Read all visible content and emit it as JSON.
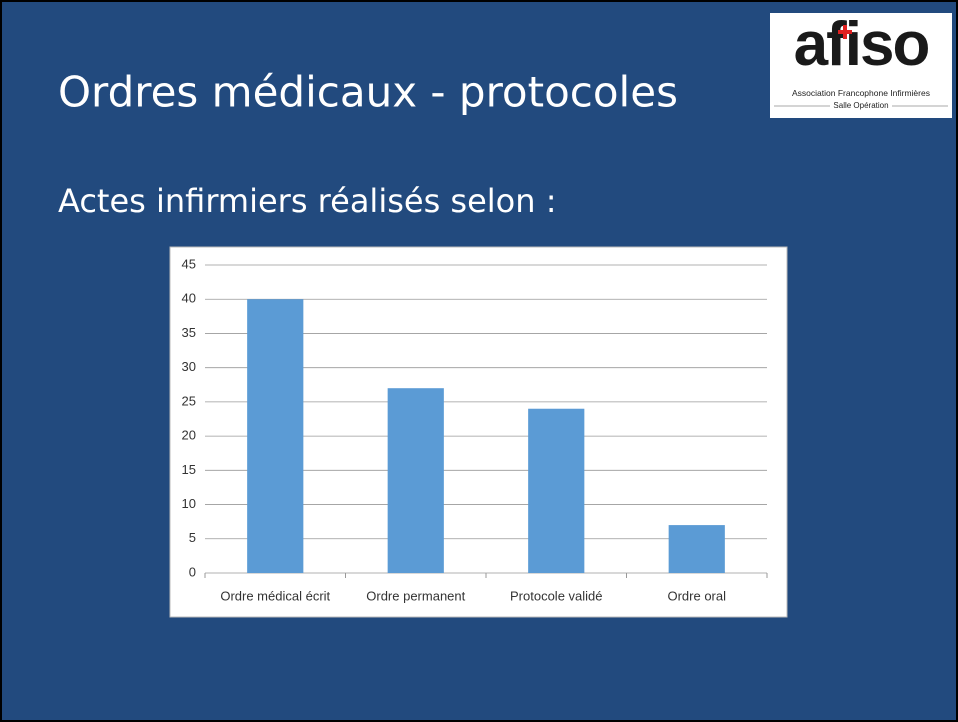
{
  "title": "Ordres médicaux - protocoles",
  "subtitle": "Actes infirmiers réalisés selon :",
  "logo": {
    "name": "afiso",
    "line1": "Association Francophone Infirmières",
    "line2": "Salle Opération"
  },
  "chart_data": {
    "type": "bar",
    "categories": [
      "Ordre médical écrit",
      "Ordre permanent",
      "Protocole validé",
      "Ordre oral"
    ],
    "values": [
      40,
      27,
      24,
      7
    ],
    "color": "#5b9bd5",
    "ylim": [
      0,
      45
    ],
    "yticks": [
      0,
      5,
      10,
      15,
      20,
      25,
      30,
      35,
      40,
      45
    ],
    "grid": true
  }
}
